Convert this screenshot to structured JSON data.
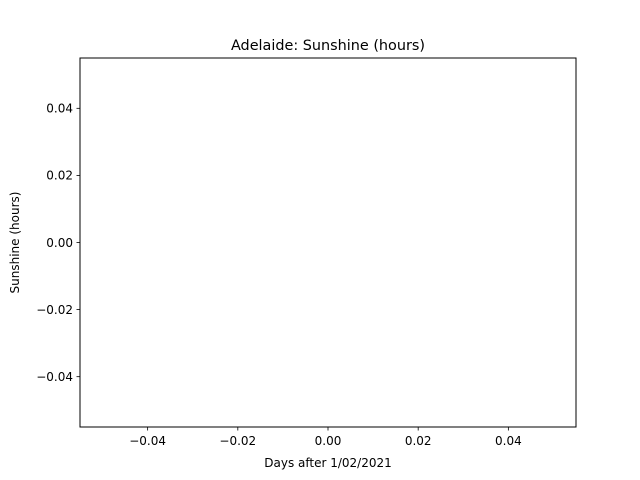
{
  "chart_data": {
    "type": "line",
    "title": "Adelaide: Sunshine (hours)",
    "xlabel": "Days after 1/02/2021",
    "ylabel": "Sunshine (hours)",
    "xlim": [
      -0.055,
      0.055
    ],
    "ylim": [
      -0.055,
      0.055
    ],
    "xticks": [
      -0.04,
      -0.02,
      0.0,
      0.02,
      0.04
    ],
    "yticks": [
      -0.04,
      -0.02,
      0.0,
      0.02,
      0.04
    ],
    "xtick_labels": [
      "−0.04",
      "−0.02",
      "0.00",
      "0.02",
      "0.04"
    ],
    "ytick_labels": [
      "−0.04",
      "−0.02",
      "0.00",
      "0.02",
      "0.04"
    ],
    "grid": false,
    "series": [
      {
        "x": [],
        "values": []
      }
    ],
    "colors": {
      "axes": "#000000",
      "background": "#ffffff"
    }
  }
}
